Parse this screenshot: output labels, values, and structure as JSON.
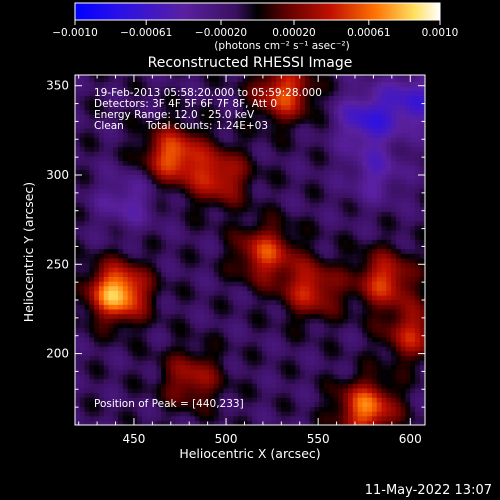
{
  "chart_data": {
    "type": "heatmap",
    "title": "Reconstructed RHESSI Image",
    "xlabel": "Heliocentric X (arcsec)",
    "ylabel": "Heliocentric Y (arcsec)",
    "xlim": [
      418,
      608
    ],
    "ylim": [
      160,
      356
    ],
    "x_ticks": [
      450,
      500,
      550,
      600
    ],
    "y_ticks": [
      200,
      250,
      300,
      350
    ],
    "grid": false,
    "colorbar": {
      "position": "top",
      "range": [
        -0.001,
        0.001
      ],
      "tick_values": [
        -0.001,
        -0.00061,
        -0.0002,
        0.0002,
        0.00061,
        0.001
      ],
      "tick_labels": [
        "−0.0010",
        "−0.00061",
        "−0.00020",
        "0.00020",
        "0.00061",
        "0.0010"
      ],
      "unit_label": "(photons cm⁻² s⁻¹ asec⁻²)"
    },
    "annotations": {
      "time_range": "19-Feb-2013 05:58:20.000 to 05:59:28.000",
      "detectors": "Detectors: 3F 4F 5F 6F 7F 8F, Att 0",
      "energy": "Energy Range: 12.0 - 25.0 keV",
      "method": "Clean",
      "counts": "Total counts: 1.24E+03",
      "peak": "Position of Peak = [440,233]"
    },
    "peak_xy": [
      440,
      233
    ],
    "bright_regions": [
      {
        "x": 440,
        "y": 233,
        "value": 0.00095
      },
      {
        "x": 470,
        "y": 310,
        "value": 0.0007
      },
      {
        "x": 495,
        "y": 298,
        "value": 0.00055
      },
      {
        "x": 520,
        "y": 255,
        "value": 0.0006
      },
      {
        "x": 545,
        "y": 235,
        "value": 0.00055
      },
      {
        "x": 585,
        "y": 240,
        "value": 0.0006
      },
      {
        "x": 530,
        "y": 345,
        "value": 0.00065
      },
      {
        "x": 575,
        "y": 168,
        "value": 0.00075
      },
      {
        "x": 480,
        "y": 185,
        "value": 0.00045
      },
      {
        "x": 600,
        "y": 210,
        "value": 0.0005
      }
    ],
    "dark_regions": [
      {
        "x": 575,
        "y": 330,
        "value": -0.0005
      },
      {
        "x": 600,
        "y": 340,
        "value": -0.00045
      },
      {
        "x": 445,
        "y": 285,
        "value": -0.0003
      },
      {
        "x": 580,
        "y": 300,
        "value": -0.0003
      }
    ],
    "background_value": -0.00012
  },
  "footer": {
    "date": "11-May-2022 13:07"
  }
}
